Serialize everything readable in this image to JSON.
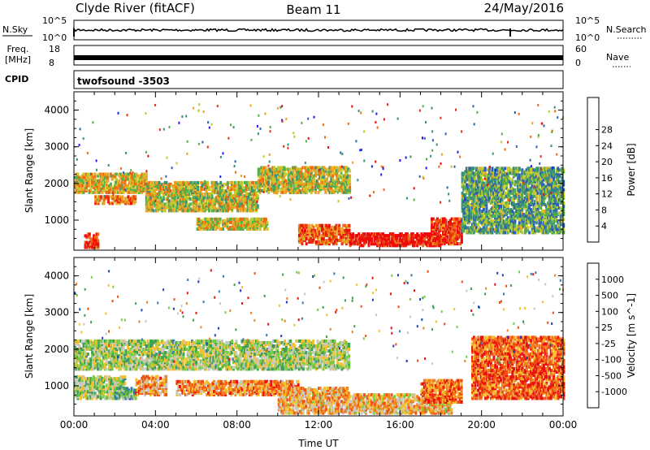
{
  "header": {
    "title_left": "Clyde River (fitACF)",
    "title_center": "Beam 11",
    "title_right": "24/May/2016"
  },
  "strips": {
    "nsky_label": "N.Sky",
    "nsky_ticks": [
      "10^5",
      "10^0"
    ],
    "nsearch_label": "N.Search",
    "nsearch_ticks": [
      "10^5",
      "10^0"
    ],
    "freq_label": "Freq.",
    "freq_unit": "[MHz]",
    "freq_ticks": [
      "18",
      "8"
    ],
    "nave_label": "Nave",
    "nave_ticks": [
      "60",
      "0"
    ],
    "cpid_label": "CPID",
    "cpid_value": "twofsound  -3503"
  },
  "chart_data": [
    {
      "type": "heatmap",
      "name": "power-panel",
      "ylabel": "Slant Range [km]",
      "ylim": [
        180,
        4500
      ],
      "yticks": [
        1000,
        2000,
        3000,
        4000
      ],
      "xlim": [
        0,
        24
      ],
      "xticks": [
        "00:00",
        "04:00",
        "08:00",
        "12:00",
        "16:00",
        "20:00",
        "00:00"
      ],
      "colorbar": {
        "label": "Power [dB]",
        "ticks": [
          "4",
          "8",
          "12",
          "16",
          "20",
          "24",
          "28"
        ],
        "colors": [
          "#1a1aff",
          "#2f5fb4",
          "#3a8f7a",
          "#55b04a",
          "#c8c82a",
          "#f0a020",
          "#ee6a10",
          "#e63010",
          "#ee0a0a"
        ]
      },
      "regions": [
        {
          "t0": 0.0,
          "t1": 3.5,
          "r0": 1800,
          "r1": 2300,
          "level": 0.55
        },
        {
          "t0": 0.5,
          "t1": 1.2,
          "r0": 300,
          "r1": 700,
          "level": 0.85
        },
        {
          "t0": 1.0,
          "t1": 3.0,
          "r0": 1500,
          "r1": 1700,
          "level": 0.7
        },
        {
          "t0": 3.5,
          "t1": 9.0,
          "r0": 1300,
          "r1": 2100,
          "level": 0.5
        },
        {
          "t0": 6.0,
          "t1": 9.5,
          "r0": 800,
          "r1": 1100,
          "level": 0.55
        },
        {
          "t0": 9.0,
          "t1": 13.5,
          "r0": 1800,
          "r1": 2500,
          "level": 0.5
        },
        {
          "t0": 11.0,
          "t1": 13.5,
          "r0": 400,
          "r1": 900,
          "level": 0.75
        },
        {
          "t0": 13.5,
          "t1": 18.0,
          "r0": 350,
          "r1": 700,
          "level": 0.95
        },
        {
          "t0": 17.5,
          "t1": 19.0,
          "r0": 400,
          "r1": 1100,
          "level": 0.85
        },
        {
          "t0": 19.0,
          "t1": 24.0,
          "r0": 700,
          "r1": 2500,
          "level": 0.35
        }
      ]
    },
    {
      "type": "heatmap",
      "name": "velocity-panel",
      "ylabel": "Slant Range [km]",
      "ylim": [
        180,
        4500
      ],
      "yticks": [
        1000,
        2000,
        3000,
        4000
      ],
      "xlim": [
        0,
        24
      ],
      "xticks": [
        "00:00",
        "04:00",
        "08:00",
        "12:00",
        "16:00",
        "20:00",
        "00:00"
      ],
      "xlabel": "Time UT",
      "colorbar": {
        "label": "Velocity [m s^-1]",
        "ticks": [
          "1000",
          "500",
          "100",
          "25",
          "-25",
          "-100",
          "-500",
          "-1000"
        ],
        "colors": [
          "#2040c0",
          "#3a78b0",
          "#3fa050",
          "#77cc44",
          "#c8c8c0",
          "#f4c030",
          "#f08020",
          "#f05010",
          "#e81010"
        ]
      },
      "regions": [
        {
          "t0": 0.0,
          "t1": 13.5,
          "r0": 1500,
          "r1": 2300,
          "level": 0.44
        },
        {
          "t0": 0.0,
          "t1": 2.5,
          "r0": 700,
          "r1": 1300,
          "level": 0.44
        },
        {
          "t0": 2.0,
          "t1": 3.0,
          "r0": 700,
          "r1": 1000,
          "level": 0.3
        },
        {
          "t0": 3.0,
          "t1": 4.5,
          "r0": 800,
          "r1": 1300,
          "level": 0.7
        },
        {
          "t0": 5.0,
          "t1": 11.0,
          "r0": 800,
          "r1": 1200,
          "level": 0.72
        },
        {
          "t0": 10.0,
          "t1": 13.5,
          "r0": 300,
          "r1": 1000,
          "level": 0.65
        },
        {
          "t0": 13.5,
          "t1": 18.5,
          "r0": 300,
          "r1": 800,
          "level": 0.62
        },
        {
          "t0": 17.0,
          "t1": 19.0,
          "r0": 600,
          "r1": 1200,
          "level": 0.78
        },
        {
          "t0": 19.5,
          "t1": 24.0,
          "r0": 700,
          "r1": 2400,
          "level": 0.82
        }
      ]
    }
  ]
}
